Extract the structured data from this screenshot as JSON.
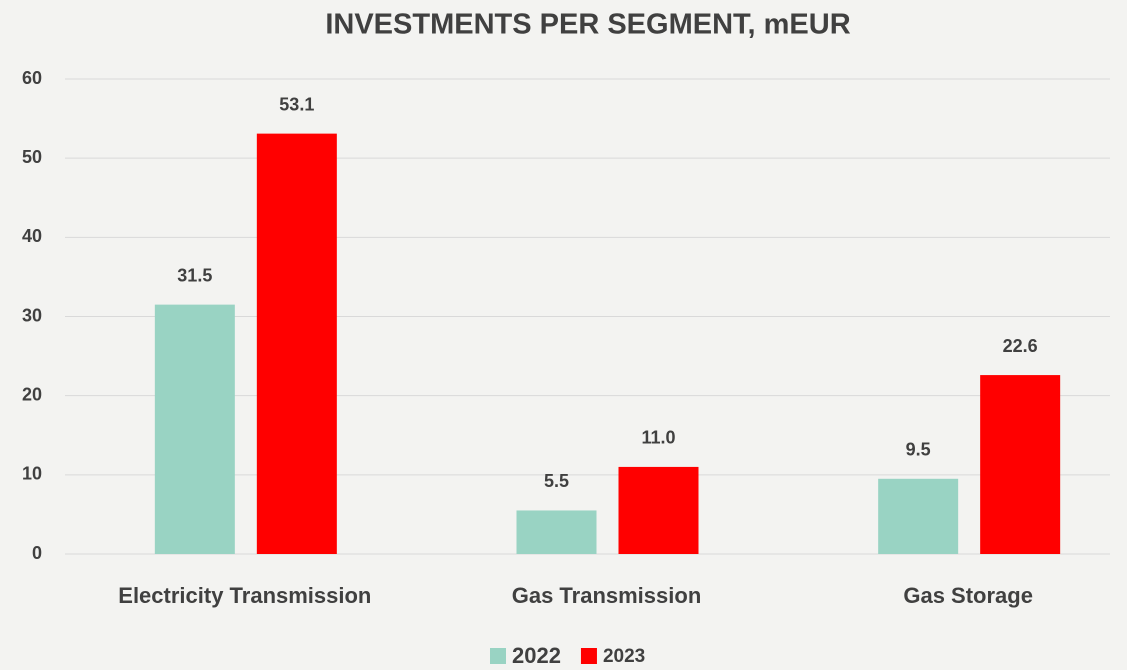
{
  "chart_data": {
    "type": "bar",
    "title": "INVESTMENTS PER SEGMENT, mEUR",
    "categories": [
      "Electricity Transmission",
      "Gas Transmission",
      "Gas Storage"
    ],
    "series": [
      {
        "name": "2022",
        "color": "#99d3c3",
        "values": [
          31.5,
          5.5,
          9.5
        ],
        "value_labels": [
          "31.5",
          "5.5",
          "9.5"
        ]
      },
      {
        "name": "2023",
        "color": "#ff0000",
        "values": [
          53.1,
          11.0,
          22.6
        ],
        "value_labels": [
          "53.1",
          "11.0",
          "22.6"
        ]
      }
    ],
    "ylim": [
      0,
      60
    ],
    "yticks": [
      0,
      10,
      20,
      30,
      40,
      50,
      60
    ],
    "grid": true,
    "legend": "bottom"
  }
}
